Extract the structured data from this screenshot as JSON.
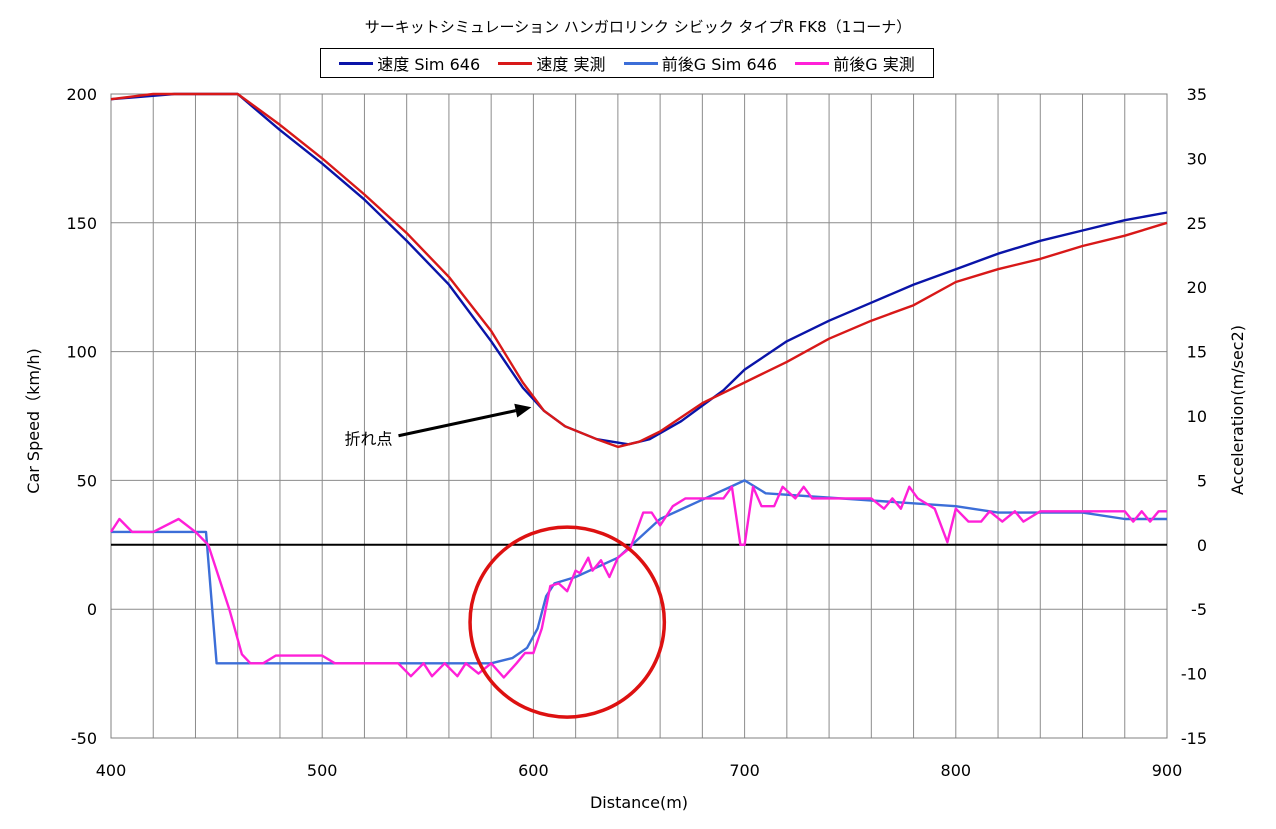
{
  "chart_data": {
    "type": "line",
    "title": "サーキットシミュレーション ハンガロリンク シビック タイプR FK8（1コーナ）",
    "xlabel": "Distance(m)",
    "ylabel": "Car Speed（km/h)",
    "y2label": "Acceleration(m/sec2)",
    "xlim": [
      400,
      900
    ],
    "ylim": [
      -50,
      200
    ],
    "y2lim": [
      -15,
      35
    ],
    "x_ticks": [
      "400",
      "500",
      "600",
      "700",
      "800",
      "900"
    ],
    "y_ticks": [
      "-50",
      "0",
      "50",
      "100",
      "150",
      "200"
    ],
    "y2_ticks": [
      "-15",
      "-10",
      "-5",
      "0",
      "5",
      "10",
      "15",
      "20",
      "25",
      "30",
      "35"
    ],
    "x_minor_step": 20,
    "grid": true,
    "legend_position": "top",
    "series": [
      {
        "name": "速度 Sim 646",
        "axis": "left",
        "color": "#0a14a8",
        "x": [
          400,
          430,
          460,
          480,
          500,
          520,
          540,
          560,
          580,
          595,
          605,
          615,
          630,
          645,
          655,
          670,
          690,
          700,
          720,
          740,
          760,
          780,
          800,
          820,
          840,
          860,
          880,
          900
        ],
        "y": [
          198,
          200,
          200,
          186,
          173,
          159,
          143,
          126,
          104,
          86,
          77,
          71,
          66,
          64,
          66,
          73,
          85,
          93,
          104,
          112,
          119,
          126,
          132,
          138,
          143,
          147,
          151,
          154
        ]
      },
      {
        "name": "速度 実測",
        "axis": "left",
        "color": "#d81818",
        "x": [
          400,
          410,
          420,
          430,
          460,
          480,
          500,
          520,
          540,
          560,
          580,
          595,
          605,
          615,
          630,
          640,
          650,
          660,
          680,
          700,
          710,
          720,
          740,
          760,
          780,
          800,
          820,
          840,
          860,
          880,
          900
        ],
        "y": [
          198,
          199,
          200,
          200,
          200,
          188,
          175,
          161,
          146,
          129,
          108,
          88,
          77,
          71,
          66,
          63,
          65,
          69,
          80,
          88,
          92,
          96,
          105,
          112,
          118,
          127,
          132,
          136,
          141,
          145,
          150
        ]
      },
      {
        "name": "前後G Sim 646",
        "axis": "right",
        "color": "#3c6ed8",
        "x": [
          400,
          445,
          450,
          500,
          550,
          580,
          590,
          597,
          602,
          606,
          610,
          620,
          640,
          660,
          680,
          700,
          710,
          800,
          820,
          860,
          880,
          900
        ],
        "y": [
          1,
          1,
          -9.2,
          -9.2,
          -9.2,
          -9.2,
          -8.8,
          -8,
          -6.5,
          -4,
          -3,
          -2.5,
          -1,
          2,
          3.5,
          5,
          4,
          3,
          2.5,
          2.5,
          2,
          2
        ]
      },
      {
        "name": "前後G 実測",
        "axis": "right",
        "color": "#ff20d8",
        "x": [
          400,
          404,
          410,
          420,
          432,
          440,
          446,
          456,
          462,
          466,
          472,
          478,
          486,
          492,
          500,
          506,
          516,
          526,
          536,
          542,
          548,
          552,
          558,
          564,
          568,
          574,
          580,
          586,
          592,
          596,
          600,
          604,
          608,
          612,
          616,
          620,
          622,
          626,
          628,
          632,
          636,
          640,
          646,
          652,
          656,
          660,
          666,
          672,
          680,
          690,
          694,
          698,
          700,
          704,
          708,
          714,
          718,
          724,
          728,
          732,
          740,
          750,
          760,
          766,
          770,
          774,
          778,
          782,
          790,
          796,
          800,
          806,
          812,
          816,
          822,
          828,
          832,
          840,
          860,
          880,
          884,
          888,
          892,
          896,
          900
        ],
        "y": [
          1,
          2,
          1,
          1,
          2,
          1,
          0,
          -5,
          -8.5,
          -9.2,
          -9.2,
          -8.6,
          -8.6,
          -8.6,
          -8.6,
          -9.2,
          -9.2,
          -9.2,
          -9.2,
          -10.2,
          -9.2,
          -10.2,
          -9.2,
          -10.2,
          -9.2,
          -10,
          -9.2,
          -10.3,
          -9.2,
          -8.4,
          -8.4,
          -6.5,
          -3.2,
          -3,
          -3.6,
          -2,
          -2.2,
          -1,
          -2,
          -1.2,
          -2.5,
          -1,
          -0.2,
          2.5,
          2.5,
          1.5,
          3,
          3.6,
          3.6,
          3.6,
          4.5,
          0,
          0,
          4.5,
          3,
          3,
          4.5,
          3.6,
          4.5,
          3.6,
          3.6,
          3.6,
          3.6,
          2.8,
          3.6,
          2.8,
          4.5,
          3.6,
          2.8,
          0.2,
          2.8,
          1.8,
          1.8,
          2.6,
          1.8,
          2.6,
          1.8,
          2.6,
          2.6,
          2.6,
          1.8,
          2.6,
          1.8,
          2.6,
          2.6
        ]
      }
    ],
    "reference_line": {
      "axis": "right",
      "y": 0,
      "color": "#000000"
    },
    "annotations": [
      {
        "text": "折れ点",
        "arrow_to": {
          "x": 600,
          "y": 78
        },
        "arrow_from": {
          "x": 574,
          "y": 72
        },
        "color": "#000000"
      },
      {
        "shape": "circle",
        "center": {
          "x": 616,
          "y": -5
        },
        "radius_x": 46,
        "color": "#dd1111"
      }
    ]
  }
}
